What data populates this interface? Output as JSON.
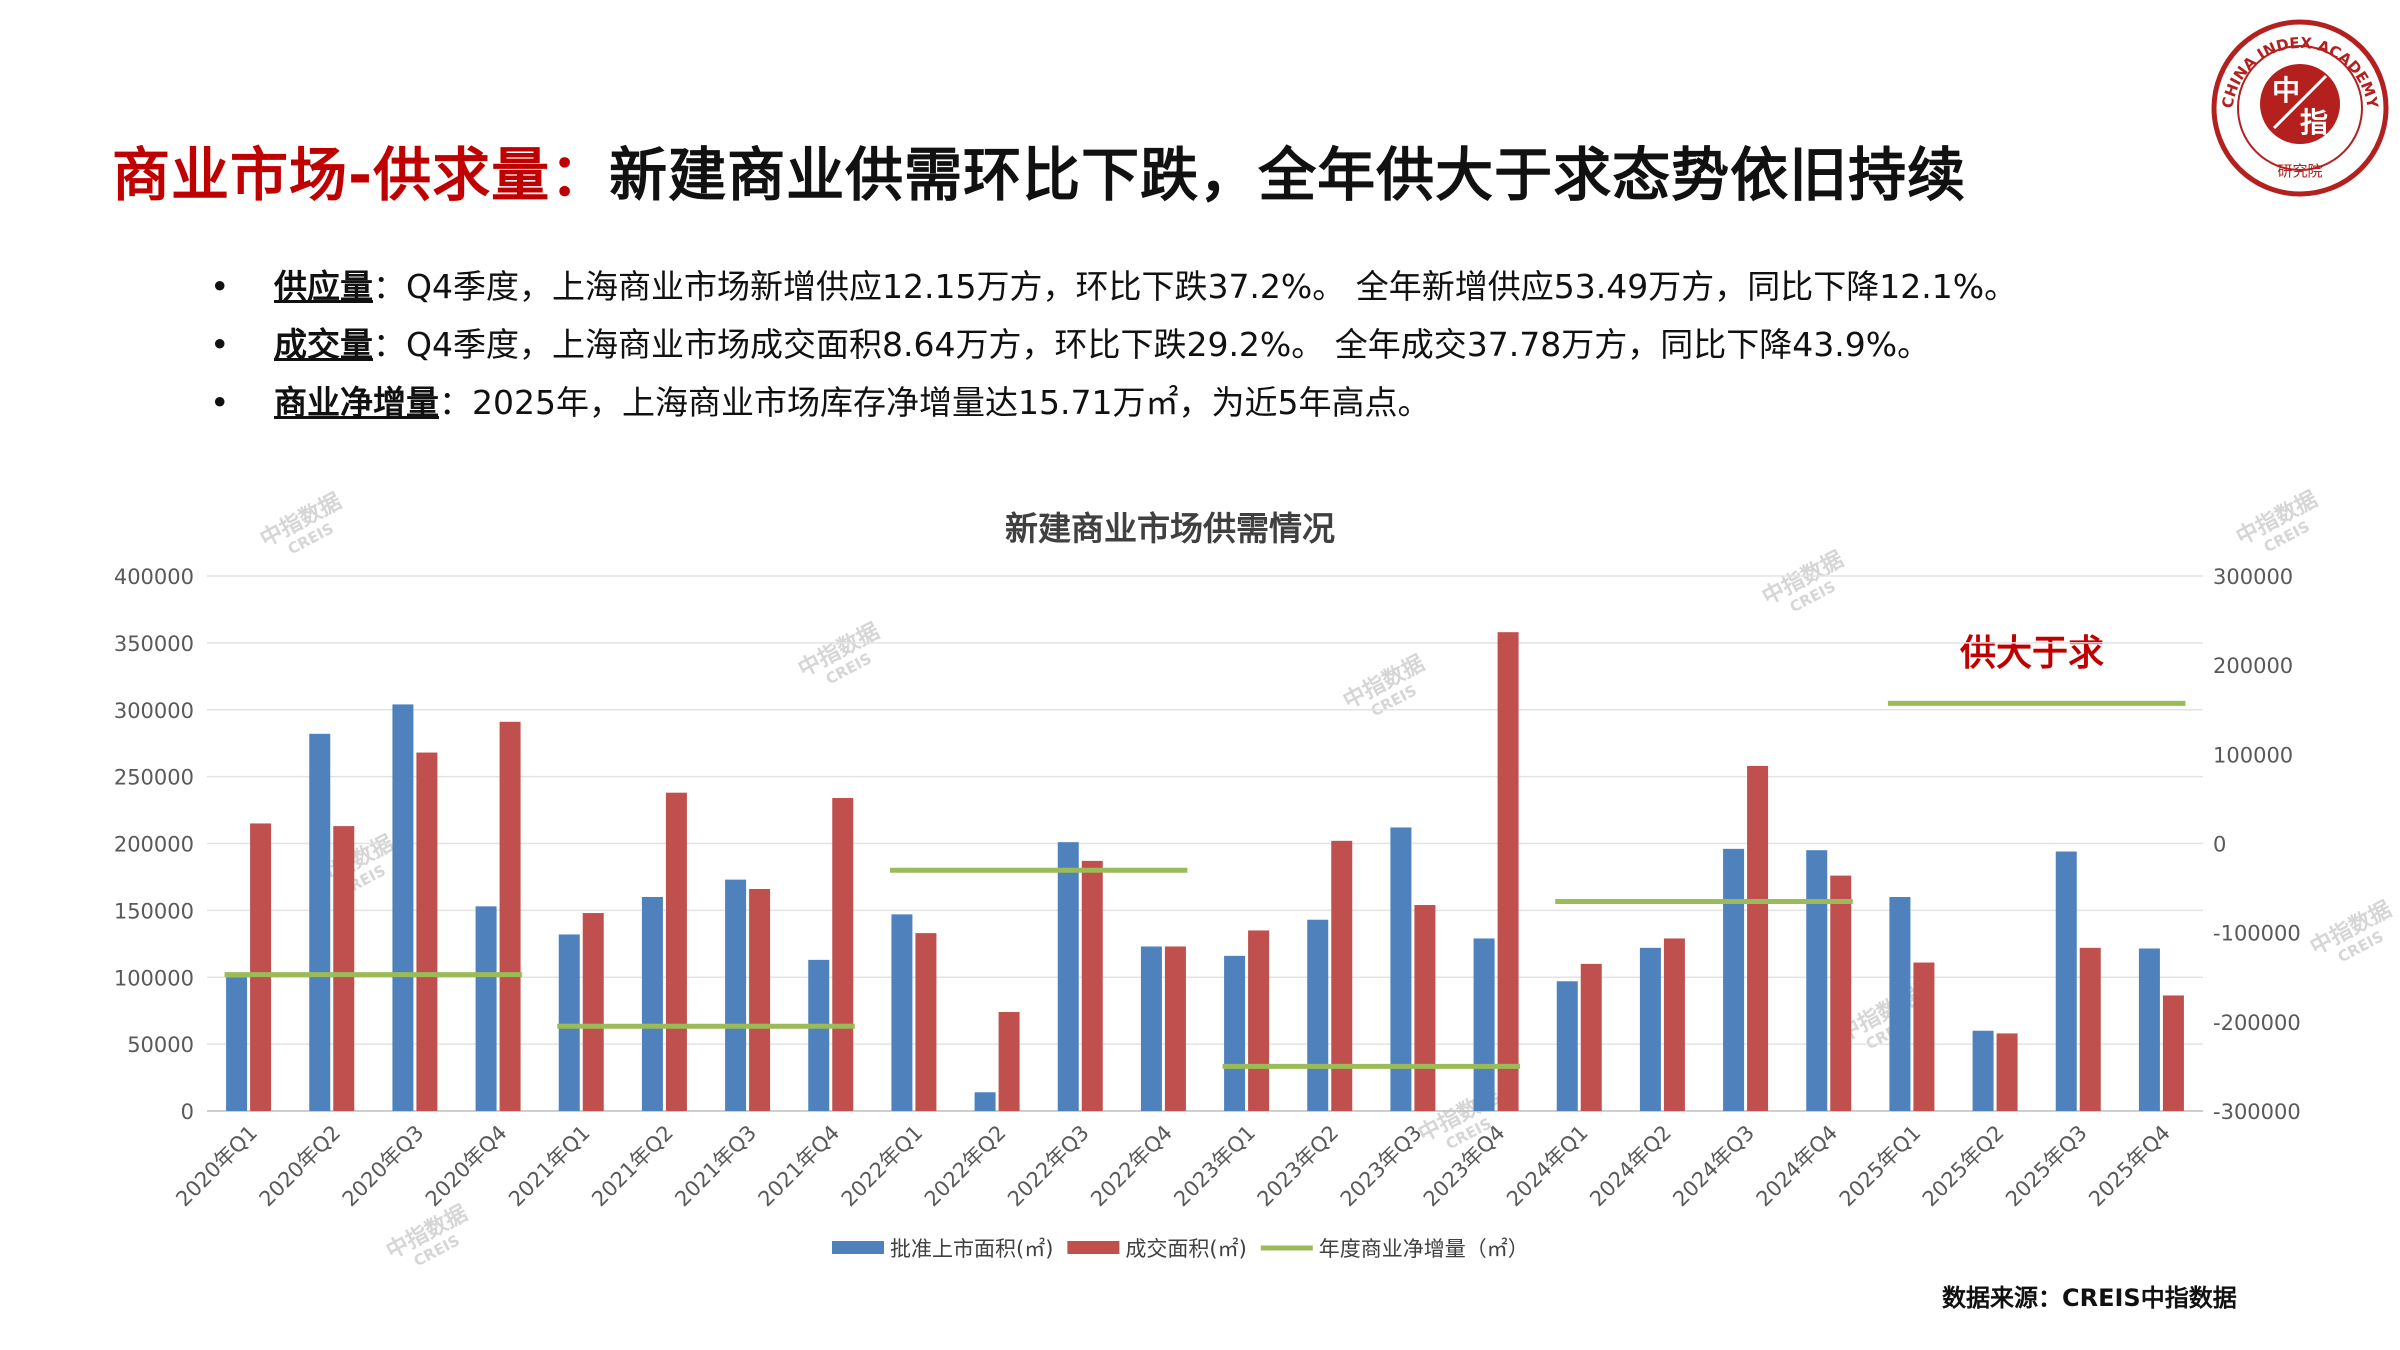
{
  "title": {
    "red": "商业市场-供求量：",
    "black": "新建商业供需环比下跌，全年供大于求态势依旧持续"
  },
  "bullets": [
    {
      "marker": "•",
      "key": "供应量",
      "text": "：Q4季度，上海商业市场新增供应12.15万方，环比下跌37.2%。 全年新增供应53.49万方，同比下降12.1%。"
    },
    {
      "marker": "•",
      "key": "成交量",
      "text": "：Q4季度，上海商业市场成交面积8.64万方，环比下跌29.2%。  全年成交37.78万方，同比下降43.9%。"
    },
    {
      "marker": "•",
      "key": "商业净增量",
      "text": "：2025年，上海商业市场库存净增量达15.71万㎡，为近5年高点。"
    }
  ],
  "logo": {
    "outer_text": "CHINA INDEX ACADEMY",
    "center_top": "中",
    "center_bottom": "指",
    "bottom_text": "研究院"
  },
  "source": "数据来源：CREIS中指数据",
  "watermark": {
    "cn": "中指数据",
    "en": "CREIS"
  },
  "colors": {
    "supply": "#4f81bd",
    "deal": "#c0504d",
    "net": "#9bbb59",
    "title_red": "#c00000",
    "annotation": "#c00000"
  },
  "chart_data": {
    "type": "bar",
    "title": "新建商业市场供需情况",
    "categories": [
      "2020年Q1",
      "2020年Q2",
      "2020年Q3",
      "2020年Q4",
      "2021年Q1",
      "2021年Q2",
      "2021年Q3",
      "2021年Q4",
      "2022年Q1",
      "2022年Q2",
      "2022年Q3",
      "2022年Q4",
      "2023年Q1",
      "2023年Q2",
      "2023年Q3",
      "2023年Q4",
      "2024年Q1",
      "2024年Q2",
      "2024年Q3",
      "2024年Q4",
      "2025年Q1",
      "2025年Q2",
      "2025年Q3",
      "2025年Q4"
    ],
    "series": [
      {
        "name": "批准上市面积(㎡)",
        "type": "bar",
        "axis": "left",
        "values": [
          100000,
          282000,
          304000,
          153000,
          132000,
          160000,
          173000,
          113000,
          147000,
          14000,
          201000,
          123000,
          116000,
          143000,
          212000,
          129000,
          97000,
          122000,
          196000,
          195000,
          160000,
          60000,
          194000,
          121500
        ]
      },
      {
        "name": "成交面积(㎡)",
        "type": "bar",
        "axis": "left",
        "values": [
          215000,
          213000,
          268000,
          291000,
          148000,
          238000,
          166000,
          234000,
          133000,
          74000,
          187000,
          123000,
          135000,
          202000,
          154000,
          358000,
          110000,
          129000,
          258000,
          176000,
          111000,
          58000,
          122000,
          86400
        ]
      },
      {
        "name": "年度商业净增量（㎡）",
        "type": "line",
        "axis": "right",
        "segments": [
          {
            "from": "2020年Q1",
            "to": "2020年Q4",
            "value": -147000
          },
          {
            "from": "2021年Q1",
            "to": "2021年Q4",
            "value": -205000
          },
          {
            "from": "2022年Q1",
            "to": "2022年Q4",
            "value": -30000
          },
          {
            "from": "2023年Q1",
            "to": "2023年Q4",
            "value": -250000
          },
          {
            "from": "2024年Q1",
            "to": "2024年Q4",
            "value": -65000
          },
          {
            "from": "2025年Q1",
            "to": "2025年Q4",
            "value": 157100
          }
        ]
      }
    ],
    "ylim": [
      0,
      400000
    ],
    "y_ticks": [
      0,
      50000,
      100000,
      150000,
      200000,
      250000,
      300000,
      350000,
      400000
    ],
    "y2lim": [
      -300000,
      300000
    ],
    "y2_ticks": [
      -300000,
      -200000,
      -100000,
      0,
      100000,
      200000,
      300000
    ],
    "grid": true,
    "legend": "bottom",
    "annotation": "供大于求"
  }
}
